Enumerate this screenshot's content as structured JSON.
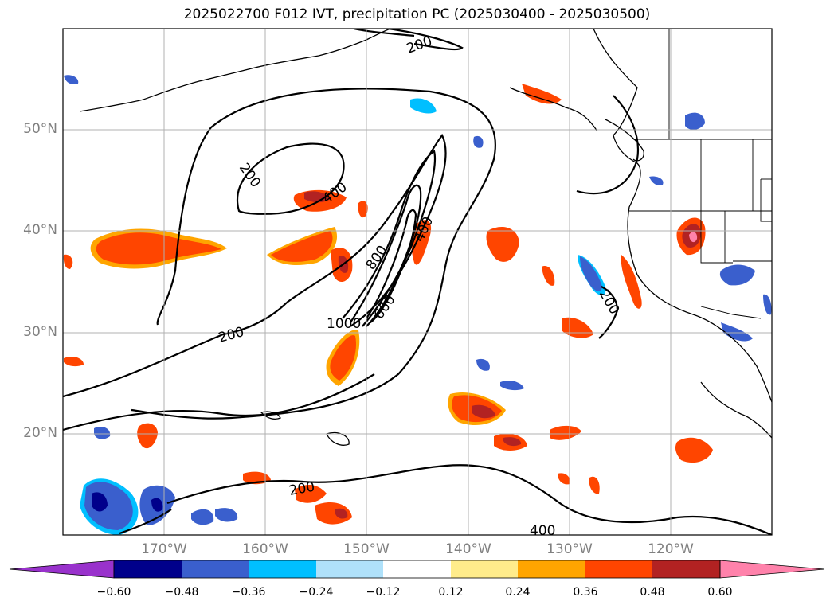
{
  "title": "2025022700 F012 IVT, precipitation PC (2025030400 - 2025030500)",
  "map": {
    "lon_range": [
      -180,
      -110
    ],
    "lat_range": [
      10,
      60
    ],
    "grid": true,
    "lat_labels": [
      "50°N",
      "40°N",
      "30°N",
      "20°N"
    ],
    "lat_values": [
      50,
      40,
      30,
      20
    ],
    "lon_labels": [
      "170°W",
      "160°W",
      "150°W",
      "140°W",
      "130°W",
      "120°W"
    ],
    "lon_values": [
      -170,
      -160,
      -150,
      -140,
      -130,
      -120
    ],
    "contour_labels": [
      "200",
      "200",
      "400",
      "400",
      "800",
      "600",
      "1000",
      "200",
      "200",
      "400",
      "200"
    ]
  },
  "colorbar": {
    "ticks": [
      "−0.60",
      "−0.48",
      "−0.36",
      "−0.24",
      "−0.12",
      "0.12",
      "0.24",
      "0.36",
      "0.48",
      "0.60"
    ],
    "colors": [
      "#9932cc",
      "#00008b",
      "#3a5fcd",
      "#00bfff",
      "#afe1fa",
      "#ffffff",
      "#ffec8b",
      "#ffa500",
      "#ff4500",
      "#b22222",
      "#ff82ab"
    ],
    "extend": "both"
  },
  "colors": {
    "neg_strong": "#00008b",
    "neg_mid": "#3a5fcd",
    "neg_light": "#00bfff",
    "pos_light": "#ffec8b",
    "pos_mid": "#ffa500",
    "pos_strong": "#ff4500",
    "pos_max": "#b22222",
    "pos_peak": "#ff82ab"
  }
}
